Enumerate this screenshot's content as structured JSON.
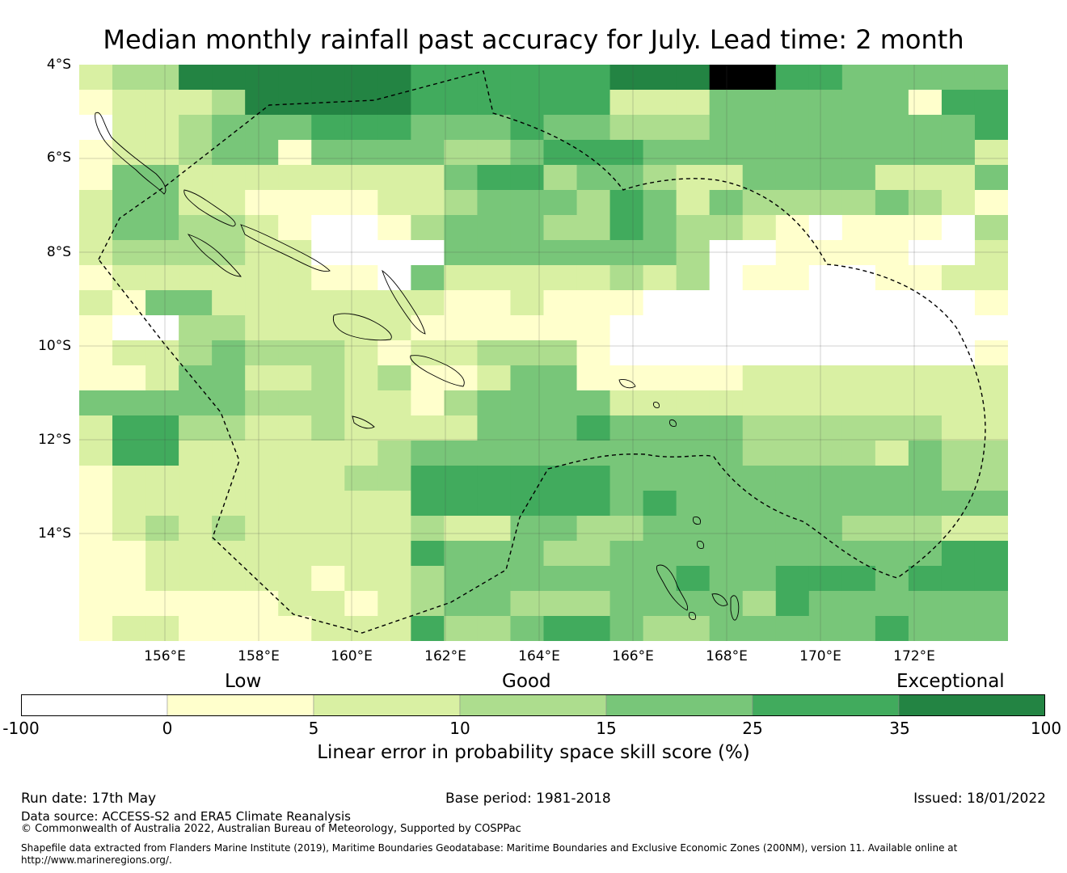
{
  "title": "Median monthly rainfall past accuracy for July. Lead time: 2 month",
  "map": {
    "lat_labels": [
      "4°S",
      "6°S",
      "8°S",
      "10°S",
      "12°S",
      "14°S"
    ],
    "lon_labels": [
      "156°E",
      "158°E",
      "160°E",
      "162°E",
      "164°E",
      "166°E",
      "168°E",
      "170°E",
      "172°E"
    ],
    "lon_range_deg_E": [
      154.2,
      174.0
    ],
    "lat_range_deg_S": [
      4.0,
      16.3
    ],
    "grid_colors": [
      "#ffffff",
      "#ffffcc",
      "#d9f0a3",
      "#addd8e",
      "#78c679",
      "#41ab5d",
      "#238443"
    ],
    "skill_grid_class": [
      "2336666666555555666775544444",
      "1222366666555555222444444155",
      "0223444555444544333444444445",
      "1223441444433455544444444442",
      "1442222222245534432244442224",
      "2442211112234443542433334321",
      "2443321001344433543321011103",
      "2333322000044444443001111002",
      "1222222110422222323011001122",
      "2144222222211211100000000001",
      "1003322222111111000000000000",
      "1223433321223331000000000001",
      "1124422323112441111122222222",
      "4444433322134444222222222222",
      "2553322322224445444433333322",
      "2552222223444444444433332433",
      "1222222233555555444444444433",
      "1222222222555555454444444444",
      "1232322222322443344444433322",
      "1122222222544433444444444455",
      "1122222122344444445445554555",
      "1111112212344333444435444444",
      "1221111222533455433444445444"
    ]
  },
  "legend": {
    "categories": [
      "Low",
      "Good",
      "Exceptional"
    ],
    "ticks": [
      "-100",
      "0",
      "5",
      "10",
      "15",
      "25",
      "35",
      "100"
    ],
    "colors": [
      "#ffffff",
      "#ffffcc",
      "#d9f0a3",
      "#addd8e",
      "#78c679",
      "#41ab5d",
      "#238443"
    ],
    "caption": "Linear error in probability space skill score (%)"
  },
  "footer": {
    "run_date": "Run date: 17th May",
    "base_period": "Base period: 1981-2018",
    "issued": "Issued: 18/01/2022",
    "data_source": "Data source: ACCESS-S2 and ERA5 Climate Reanalysis",
    "copyright": "© Commonwealth of Australia 2022, Australian Bureau of Meteorology, Supported by COSPPac",
    "shapefile_1": "Shapefile data extracted from Flanders Marine Institute (2019), Maritime Boundaries Geodatabase: Maritime Boundaries and Exclusive Economic Zones (200NM), version 11. Available online at",
    "shapefile_2": "http://www.marineregions.org/."
  }
}
